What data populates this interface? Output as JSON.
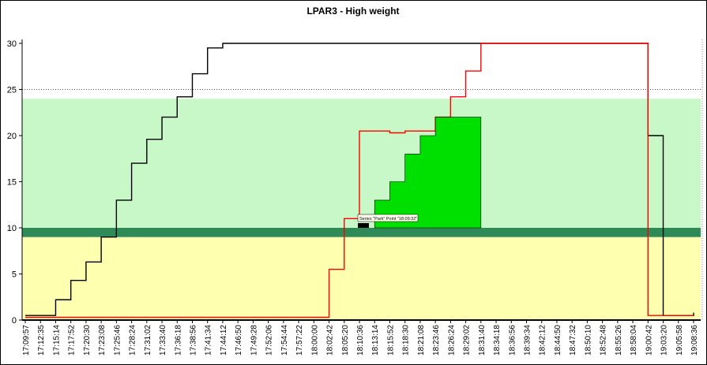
{
  "chart_data": {
    "type": "line",
    "title": "LPAR3 - High weight",
    "categories": [
      "17:09:57",
      "17:12:35",
      "17:15:14",
      "17:17:52",
      "17:20:30",
      "17:23:08",
      "17:25:46",
      "17:28:24",
      "17:31:02",
      "17:33:40",
      "17:36:18",
      "17:38:56",
      "17:41:34",
      "17:44:12",
      "17:46:50",
      "17:49:28",
      "17:52:06",
      "17:54:44",
      "17:57:22",
      "18:00:00",
      "18:02:42",
      "18:05:20",
      "18:10:36",
      "18:13:14",
      "18:15:52",
      "18:18:30",
      "18:21:08",
      "18:23:46",
      "18:26:24",
      "18:29:02",
      "18:31:40",
      "18:34:18",
      "18:36:56",
      "18:39:34",
      "18:42:12",
      "18:44:50",
      "18:47:32",
      "18:50:10",
      "18:52:48",
      "18:55:26",
      "18:58:04",
      "19:00:42",
      "19:03:20",
      "19:05:58",
      "19:08:36"
    ],
    "series": [
      {
        "color": "#000000",
        "values": [
          0.5,
          0.5,
          2.2,
          4.3,
          6.3,
          9,
          13,
          17,
          19.6,
          22,
          24.2,
          26.7,
          29.5,
          30,
          30,
          30,
          30,
          30,
          30,
          30,
          30,
          30,
          30,
          30,
          30,
          30,
          30,
          30,
          30,
          30,
          30,
          30,
          30,
          30,
          30,
          30,
          30,
          30,
          30,
          30,
          30,
          20,
          0.5,
          0.5,
          0.8
        ]
      },
      {
        "color": "#ff0000",
        "values": [
          0.3,
          0.3,
          0.3,
          0.3,
          0.3,
          0.3,
          0.3,
          0.3,
          0.3,
          0.3,
          0.3,
          0.3,
          0.3,
          0.3,
          0.3,
          0.3,
          0.3,
          0.3,
          0.3,
          0.3,
          5.5,
          11,
          20.5,
          20.5,
          20.3,
          20.5,
          20.5,
          22,
          24.2,
          27,
          30,
          30,
          30,
          30,
          30,
          30,
          30,
          30,
          30,
          30,
          30,
          0.5,
          0.5,
          0.5,
          0.5
        ]
      },
      {
        "name": "Park",
        "color": "#00e000",
        "fill": true,
        "values": [
          null,
          null,
          null,
          null,
          null,
          null,
          null,
          null,
          null,
          null,
          null,
          null,
          null,
          null,
          null,
          null,
          null,
          null,
          null,
          null,
          null,
          null,
          null,
          13,
          15,
          18,
          20,
          22,
          22,
          22,
          10,
          null,
          null,
          null,
          null,
          null,
          null,
          null,
          null,
          null,
          null,
          null,
          null,
          null,
          null
        ]
      }
    ],
    "bands": [
      {
        "from": 0,
        "to": 9,
        "color": "#ffffb0"
      },
      {
        "from": 9,
        "to": 10,
        "color": "#2e8b57"
      },
      {
        "from": 10,
        "to": 24,
        "color": "#c8f8c8"
      }
    ],
    "reference_lines": [
      25
    ],
    "annotation": "Series \"Park\" Point \"18:09:32\"",
    "ylim": [
      0,
      30
    ],
    "yticks": [
      0,
      5,
      10,
      15,
      20,
      25,
      30
    ]
  }
}
